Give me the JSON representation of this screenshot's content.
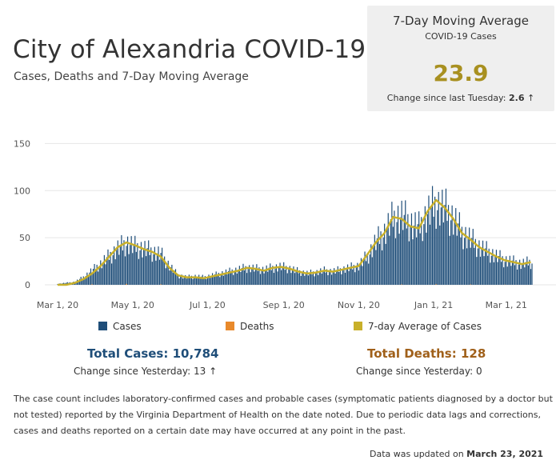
{
  "header": {
    "title": "City of Alexandria COVID-19",
    "subtitle": "Cases, Deaths and 7-Day Moving Average"
  },
  "kpi": {
    "title": "7-Day Moving Average",
    "subtitle": "COVID-19 Cases",
    "value": "23.9",
    "change_label": "Change since last Tuesday:",
    "change_value": "2.6",
    "change_arrow": "↑"
  },
  "legend": {
    "cases": "Cases",
    "deaths": "Deaths",
    "average": "7-day Average of Cases"
  },
  "totals": {
    "cases_label": "Total Cases: 10,784",
    "cases_change": "Change since Yesterday: 13 ↑",
    "deaths_label": "Total Deaths: 128",
    "deaths_change": "Change since Yesterday: 0"
  },
  "footnote": "The case count includes laboratory-confirmed cases and probable cases (symptomatic patients diagnosed by a doctor but not tested) reported by the Virginia Department of Health on the date noted. Due to periodic data lags and corrections, cases and deaths reported on a certain date may have occurred at any point in the past.",
  "updated": {
    "label": "Data was updated on",
    "date": "March 23, 2021"
  },
  "colors": {
    "cases": "#1f4e79",
    "deaths": "#e8892b",
    "average": "#c8b02a",
    "kpi_value": "#a89020",
    "total_cases": "#1f4e79",
    "total_deaths": "#a0601a"
  },
  "icons": {
    "change_arrow": "up-arrow-icon"
  },
  "chart_data": {
    "type": "bar",
    "x_type": "date",
    "x_start": "2020-03-01",
    "x_end": "2021-03-22",
    "xticks": [
      "Mar 1, 20",
      "May 1, 20",
      "Jul 1, 20",
      "Sep 1, 20",
      "Nov 1, 20",
      "Jan 1, 21",
      "Mar 1, 21"
    ],
    "xtick_dates": [
      "2020-03-01",
      "2020-05-01",
      "2020-07-01",
      "2020-09-01",
      "2020-11-01",
      "2021-01-01",
      "2021-03-01"
    ],
    "yticks": [
      0,
      50,
      100,
      150
    ],
    "ylim": [
      0,
      175
    ],
    "grid": true,
    "legend_position": "bottom",
    "series": [
      {
        "name": "Cases",
        "type": "bar",
        "note": "Approximate weekly average daily cases, read from chart",
        "x": [
          "2020-03-01",
          "2020-03-08",
          "2020-03-15",
          "2020-03-22",
          "2020-03-29",
          "2020-04-05",
          "2020-04-12",
          "2020-04-19",
          "2020-04-26",
          "2020-05-03",
          "2020-05-10",
          "2020-05-17",
          "2020-05-24",
          "2020-05-31",
          "2020-06-07",
          "2020-06-14",
          "2020-06-21",
          "2020-06-28",
          "2020-07-05",
          "2020-07-12",
          "2020-07-19",
          "2020-07-26",
          "2020-08-02",
          "2020-08-09",
          "2020-08-16",
          "2020-08-23",
          "2020-08-30",
          "2020-09-06",
          "2020-09-13",
          "2020-09-20",
          "2020-09-27",
          "2020-10-04",
          "2020-10-11",
          "2020-10-18",
          "2020-10-25",
          "2020-11-01",
          "2020-11-08",
          "2020-11-15",
          "2020-11-22",
          "2020-11-29",
          "2020-12-06",
          "2020-12-13",
          "2020-12-20",
          "2020-12-27",
          "2021-01-03",
          "2021-01-10",
          "2021-01-17",
          "2021-01-24",
          "2021-01-31",
          "2021-02-07",
          "2021-02-14",
          "2021-02-21",
          "2021-02-28",
          "2021-03-07",
          "2021-03-14",
          "2021-03-21"
        ],
        "values": [
          1,
          2,
          3,
          8,
          15,
          22,
          30,
          38,
          44,
          40,
          38,
          35,
          32,
          20,
          10,
          8,
          9,
          8,
          10,
          12,
          14,
          16,
          18,
          17,
          16,
          18,
          19,
          17,
          14,
          12,
          13,
          15,
          14,
          16,
          18,
          20,
          30,
          45,
          55,
          70,
          72,
          65,
          60,
          75,
          85,
          80,
          70,
          55,
          48,
          40,
          35,
          30,
          26,
          24,
          22,
          24
        ]
      },
      {
        "name": "Deaths",
        "type": "bar",
        "note": "Daily deaths are small relative to cases; approximate weekly averages",
        "x": [
          "2020-03-01",
          "2020-03-29",
          "2020-04-26",
          "2020-05-24",
          "2020-06-21",
          "2020-07-19",
          "2020-08-16",
          "2020-09-13",
          "2020-10-11",
          "2020-11-08",
          "2020-12-06",
          "2021-01-03",
          "2021-01-31",
          "2021-02-28",
          "2021-03-21"
        ],
        "values": [
          0,
          0.5,
          1,
          0.5,
          0.2,
          0.1,
          0.1,
          0.1,
          0.1,
          0.2,
          0.4,
          0.6,
          0.4,
          0.2,
          0
        ]
      },
      {
        "name": "7-day Average of Cases",
        "type": "line",
        "x": [
          "2020-03-01",
          "2020-03-08",
          "2020-03-15",
          "2020-03-22",
          "2020-03-29",
          "2020-04-05",
          "2020-04-12",
          "2020-04-19",
          "2020-04-26",
          "2020-05-03",
          "2020-05-10",
          "2020-05-17",
          "2020-05-24",
          "2020-05-31",
          "2020-06-07",
          "2020-06-14",
          "2020-06-21",
          "2020-06-28",
          "2020-07-05",
          "2020-07-12",
          "2020-07-19",
          "2020-07-26",
          "2020-08-02",
          "2020-08-09",
          "2020-08-16",
          "2020-08-23",
          "2020-08-30",
          "2020-09-06",
          "2020-09-13",
          "2020-09-20",
          "2020-09-27",
          "2020-10-04",
          "2020-10-11",
          "2020-10-18",
          "2020-10-25",
          "2020-11-01",
          "2020-11-08",
          "2020-11-15",
          "2020-11-22",
          "2020-11-29",
          "2020-12-06",
          "2020-12-13",
          "2020-12-20",
          "2020-12-27",
          "2021-01-03",
          "2021-01-10",
          "2021-01-17",
          "2021-01-24",
          "2021-01-31",
          "2021-02-07",
          "2021-02-14",
          "2021-02-21",
          "2021-02-28",
          "2021-03-07",
          "2021-03-14",
          "2021-03-21"
        ],
        "values": [
          0,
          0,
          2,
          6,
          12,
          20,
          30,
          40,
          45,
          42,
          38,
          35,
          30,
          18,
          10,
          8,
          8,
          7,
          9,
          11,
          13,
          15,
          18,
          17,
          15,
          18,
          19,
          17,
          14,
          12,
          13,
          15,
          14,
          16,
          18,
          20,
          32,
          45,
          55,
          72,
          70,
          62,
          60,
          78,
          90,
          82,
          70,
          55,
          48,
          40,
          35,
          30,
          26,
          24,
          22,
          24
        ]
      }
    ]
  }
}
